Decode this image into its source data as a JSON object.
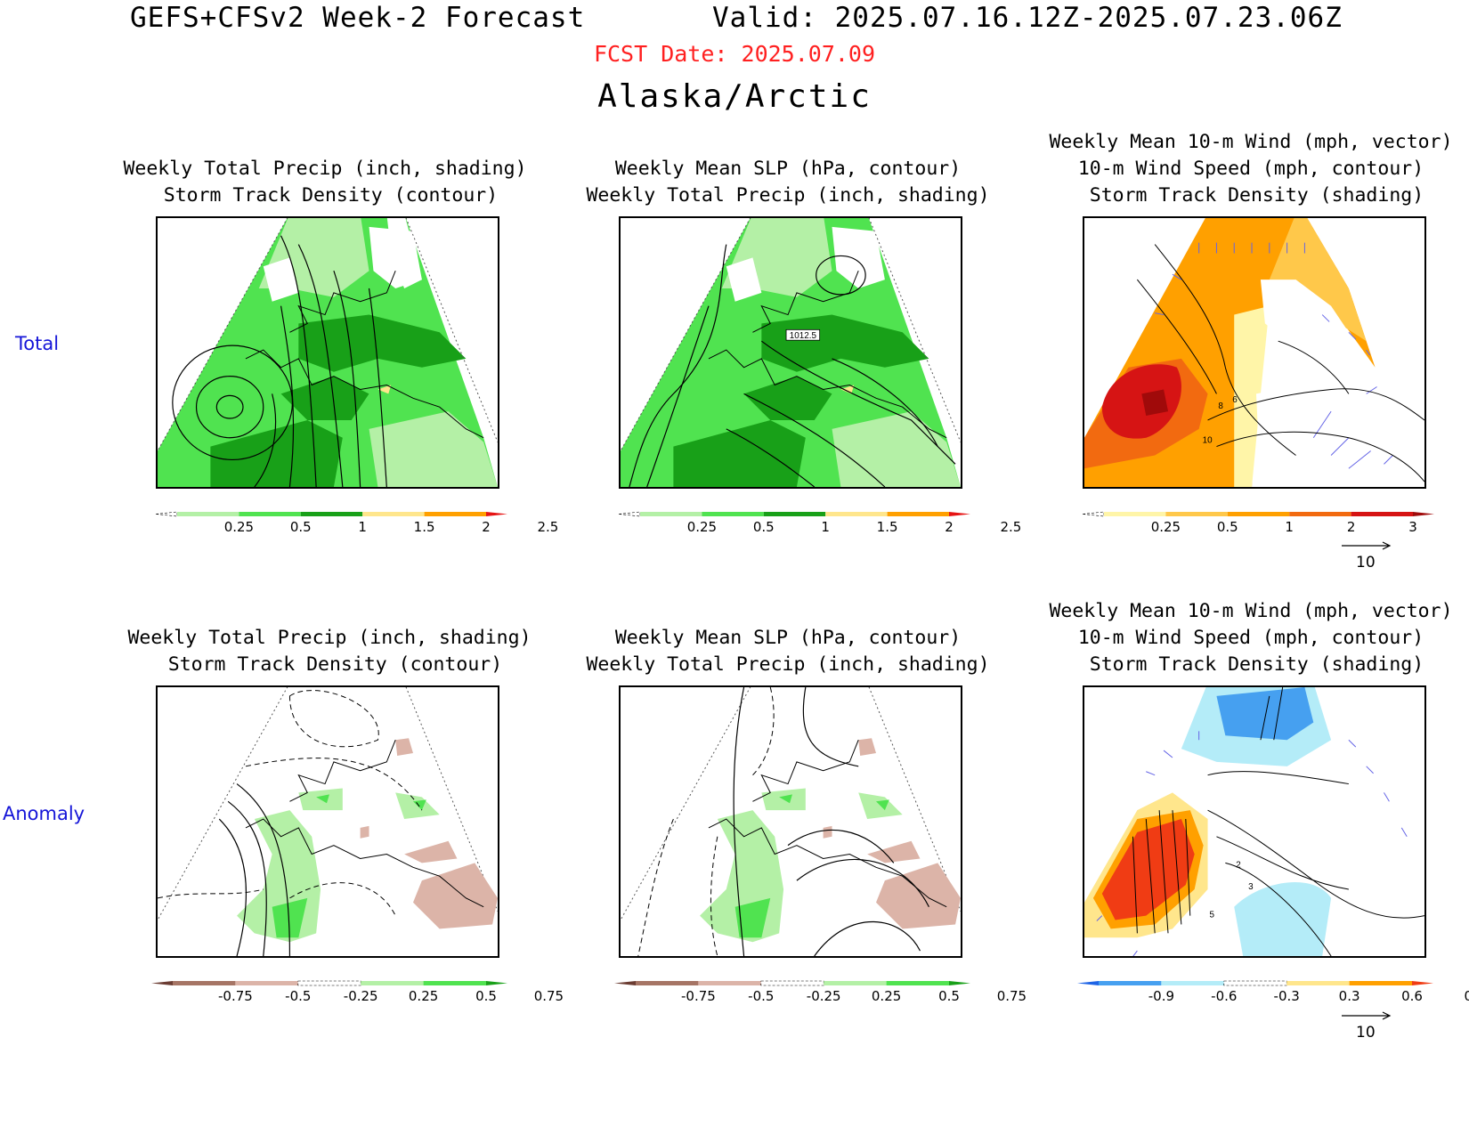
{
  "header": {
    "title_left": "GEFS+CFSv2 Week-2 Forecast",
    "title_right": "Valid: 2025.07.16.12Z-2025.07.23.06Z",
    "fcst_date": "FCST Date: 2025.07.09",
    "region": "Alaska/Arctic"
  },
  "rows": [
    {
      "label": "Total"
    },
    {
      "label": "Anomaly"
    }
  ],
  "panels": {
    "precip_total": {
      "title": "Weekly Total Precip (inch, shading)\n Storm Track Density (contour)"
    },
    "slp_total": {
      "title": "Weekly Mean SLP (hPa, contour)\nWeekly Total Precip (inch, shading)",
      "contour_label": "1012.5"
    },
    "wind_total": {
      "title": "Weekly Mean 10-m Wind (mph, vector)\n10-m Wind Speed (mph, contour)\n Storm Track Density (shading)",
      "contour_labels": [
        "8",
        "6",
        "10"
      ]
    },
    "precip_anom": {
      "title": "Weekly Total Precip (inch, shading)\n Storm Track Density (contour)"
    },
    "slp_anom": {
      "title": "Weekly Mean SLP (hPa, contour)\nWeekly Total Precip (inch, shading)"
    },
    "wind_anom": {
      "title": "Weekly Mean 10-m Wind (mph, vector)\n10-m Wind Speed (mph, contour)\n Storm Track Density (shading)",
      "contour_labels": [
        "2",
        "3",
        "5"
      ]
    }
  },
  "colorbars": {
    "precip_total": {
      "colors": [
        "#ffffff",
        "#b4f0a6",
        "#50e350",
        "#18a018",
        "#ffe68c",
        "#ffa000",
        "#e61414"
      ],
      "labels": [
        "0.25",
        "0.5",
        "1",
        "1.5",
        "2",
        "2.5"
      ]
    },
    "storm_total": {
      "colors": [
        "#ffffff",
        "#fff5a8",
        "#ffc84a",
        "#ffa000",
        "#f26a10",
        "#d61414",
        "#a00a0a"
      ],
      "labels": [
        "0.25",
        "0.5",
        "1",
        "2",
        "3",
        "4"
      ]
    },
    "precip_anom": {
      "colors": [
        "#6b3c32",
        "#a67565",
        "#dcb4a8",
        "#ffffff",
        "#b4f0a6",
        "#50e350",
        "#18a018"
      ],
      "labels": [
        "-0.75",
        "-0.5",
        "-0.25",
        "0.25",
        "0.5",
        "0.75"
      ]
    },
    "storm_anom": {
      "colors": [
        "#1e64e6",
        "#46a0f0",
        "#b4ecf8",
        "#ffffff",
        "#ffe68c",
        "#ffa000",
        "#f03c14"
      ],
      "labels": [
        "-0.9",
        "-0.6",
        "-0.3",
        "0.3",
        "0.6",
        "0.9"
      ]
    }
  },
  "vector_reference": {
    "label": "10"
  }
}
